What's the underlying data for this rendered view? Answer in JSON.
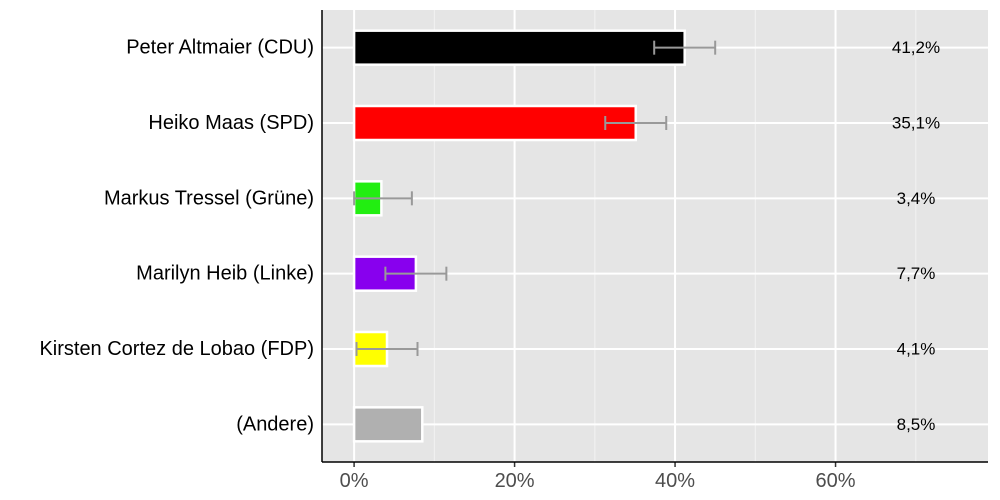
{
  "chart_data": {
    "type": "bar",
    "orientation": "horizontal",
    "categories": [
      "Peter Altmaier (CDU)",
      "Heiko Maas (SPD)",
      "Markus Tressel (Grüne)",
      "Marilyn Heib (Linke)",
      "Kirsten Cortez de Lobao (FDP)",
      "(Andere)"
    ],
    "values": [
      41.2,
      35.1,
      3.4,
      7.7,
      4.1,
      8.5
    ],
    "value_labels": [
      "41,2%",
      "35,1%",
      "3,4%",
      "7,7%",
      "4,1%",
      "8,5%"
    ],
    "error_low": [
      37.4,
      31.3,
      0.0,
      3.9,
      0.3,
      null
    ],
    "error_high": [
      45.0,
      38.9,
      7.2,
      11.5,
      7.9,
      null
    ],
    "colors": [
      "#000000",
      "#ff0000",
      "#22ee11",
      "#8800ee",
      "#ffff00",
      "#b0b0b0"
    ],
    "error_bar_color": "#999999",
    "xlim": [
      -4,
      79
    ],
    "x_ticks": [
      0,
      20,
      40,
      60
    ],
    "x_tick_labels": [
      "0%",
      "20%",
      "40%",
      "60%"
    ],
    "grid": true,
    "background": "#e5e5e5",
    "title": "",
    "xlabel": "",
    "ylabel": ""
  }
}
